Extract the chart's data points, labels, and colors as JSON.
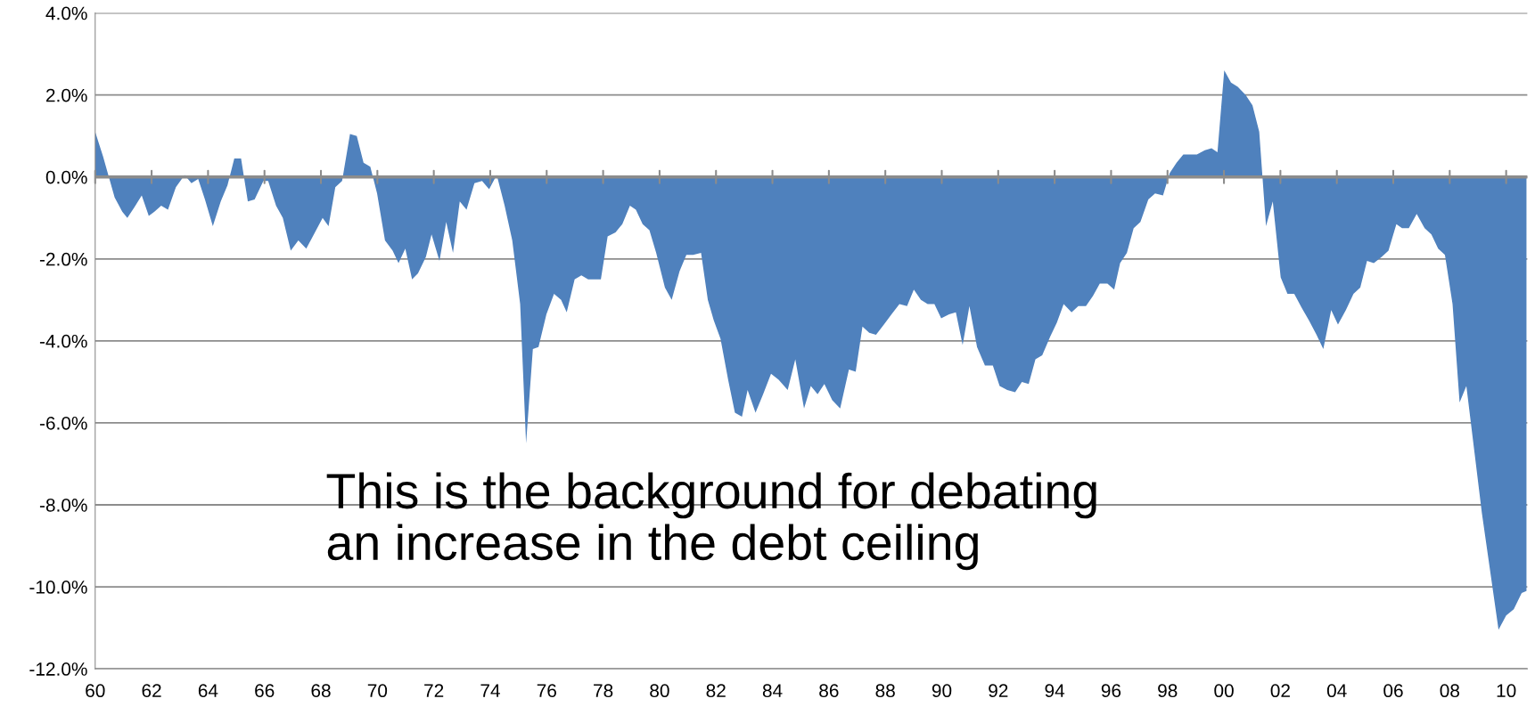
{
  "chart_data": {
    "type": "area",
    "x": [
      1960.0,
      1960.28,
      1960.69,
      1960.96,
      1961.14,
      1961.38,
      1961.65,
      1961.9,
      1962.1,
      1962.34,
      1962.58,
      1962.86,
      1963.17,
      1963.41,
      1963.65,
      1963.89,
      1964.17,
      1964.45,
      1964.69,
      1964.93,
      1965.17,
      1965.41,
      1965.65,
      1965.96,
      1966.13,
      1966.41,
      1966.65,
      1966.93,
      1967.2,
      1967.48,
      1967.75,
      1968.06,
      1968.27,
      1968.51,
      1968.75,
      1969.03,
      1969.27,
      1969.51,
      1969.75,
      1969.99,
      1970.27,
      1970.54,
      1970.75,
      1970.99,
      1971.23,
      1971.44,
      1971.72,
      1971.92,
      1972.2,
      1972.44,
      1972.68,
      1972.92,
      1973.16,
      1973.44,
      1973.71,
      1973.96,
      1974.23,
      1974.51,
      1974.78,
      1975.06,
      1975.27,
      1975.51,
      1975.71,
      1975.99,
      1976.26,
      1976.51,
      1976.71,
      1976.99,
      1977.23,
      1977.47,
      1977.71,
      1977.92,
      1978.16,
      1978.44,
      1978.68,
      1978.95,
      1979.16,
      1979.4,
      1979.64,
      1979.88,
      1980.19,
      1980.43,
      1980.71,
      1980.95,
      1981.19,
      1981.47,
      1981.71,
      1981.92,
      1982.16,
      1982.43,
      1982.67,
      1982.92,
      1983.12,
      1983.4,
      1983.67,
      1983.95,
      1984.22,
      1984.54,
      1984.81,
      1985.12,
      1985.36,
      1985.6,
      1985.84,
      1986.12,
      1986.4,
      1986.71,
      1986.95,
      1987.19,
      1987.43,
      1987.67,
      1987.95,
      1988.22,
      1988.5,
      1988.77,
      1989.01,
      1989.26,
      1989.5,
      1989.74,
      1989.98,
      1990.26,
      1990.5,
      1990.74,
      1990.98,
      1991.25,
      1991.53,
      1991.81,
      1992.05,
      1992.32,
      1992.6,
      1992.84,
      1993.08,
      1993.32,
      1993.56,
      1993.84,
      1994.08,
      1994.32,
      1994.6,
      1994.84,
      1995.11,
      1995.36,
      1995.6,
      1995.87,
      1996.11,
      1996.32,
      1996.56,
      1996.8,
      1997.04,
      1997.32,
      1997.56,
      1997.84,
      1998.08,
      1998.32,
      1998.56,
      1998.8,
      1999.04,
      1999.32,
      1999.56,
      1999.77,
      2000.01,
      2000.25,
      2000.49,
      2000.77,
      2001.01,
      2001.25,
      2001.49,
      2001.73,
      2002.01,
      2002.25,
      2002.49,
      2002.76,
      2003.01,
      2003.28,
      2003.52,
      2003.8,
      2004.04,
      2004.32,
      2004.59,
      2004.83,
      2005.07,
      2005.31,
      2005.59,
      2005.83,
      2006.11,
      2006.31,
      2006.55,
      2006.83,
      2007.11,
      2007.35,
      2007.59,
      2007.83,
      2008.1,
      2008.35,
      2008.59,
      2009.14,
      2009.73,
      2010.0,
      2010.27,
      2010.55,
      2010.72
    ],
    "series": [
      {
        "color": "#4f81bd",
        "values": [
          1.1,
          0.5,
          -0.5,
          -0.85,
          -1.0,
          -0.75,
          -0.45,
          -0.95,
          -0.85,
          -0.7,
          -0.8,
          -0.25,
          0.05,
          -0.15,
          -0.05,
          -0.55,
          -1.2,
          -0.6,
          -0.2,
          0.45,
          0.45,
          -0.6,
          -0.55,
          -0.1,
          -0.1,
          -0.7,
          -1.0,
          -1.8,
          -1.55,
          -1.75,
          -1.4,
          -1.0,
          -1.2,
          -0.25,
          -0.1,
          1.05,
          1.0,
          0.35,
          0.25,
          -0.4,
          -1.55,
          -1.8,
          -2.1,
          -1.75,
          -2.5,
          -2.35,
          -1.95,
          -1.4,
          -2.05,
          -1.1,
          -1.85,
          -0.6,
          -0.8,
          -0.15,
          -0.1,
          -0.3,
          0.05,
          -0.7,
          -1.55,
          -3.1,
          -6.5,
          -4.2,
          -4.15,
          -3.35,
          -2.85,
          -3.0,
          -3.3,
          -2.5,
          -2.4,
          -2.5,
          -2.5,
          -2.5,
          -1.45,
          -1.35,
          -1.15,
          -0.7,
          -0.8,
          -1.15,
          -1.3,
          -1.85,
          -2.7,
          -3.0,
          -2.3,
          -1.9,
          -1.9,
          -1.85,
          -3.0,
          -3.5,
          -3.95,
          -4.95,
          -5.75,
          -5.85,
          -5.2,
          -5.75,
          -5.3,
          -4.8,
          -4.95,
          -5.2,
          -4.45,
          -5.65,
          -5.1,
          -5.3,
          -5.05,
          -5.45,
          -5.65,
          -4.7,
          -4.75,
          -3.65,
          -3.8,
          -3.85,
          -3.6,
          -3.35,
          -3.1,
          -3.15,
          -2.75,
          -3.0,
          -3.1,
          -3.1,
          -3.45,
          -3.35,
          -3.3,
          -4.1,
          -3.15,
          -4.15,
          -4.6,
          -4.6,
          -5.1,
          -5.2,
          -5.25,
          -5.0,
          -5.05,
          -4.45,
          -4.35,
          -3.9,
          -3.55,
          -3.1,
          -3.3,
          -3.15,
          -3.15,
          -2.9,
          -2.6,
          -2.6,
          -2.75,
          -2.1,
          -1.85,
          -1.25,
          -1.1,
          -0.55,
          -0.4,
          -0.45,
          0.1,
          0.35,
          0.55,
          0.55,
          0.55,
          0.65,
          0.7,
          0.6,
          2.6,
          2.3,
          2.2,
          2.0,
          1.75,
          1.1,
          -1.2,
          -0.6,
          -2.45,
          -2.85,
          -2.85,
          -3.2,
          -3.5,
          -3.85,
          -4.2,
          -3.25,
          -3.6,
          -3.25,
          -2.85,
          -2.7,
          -2.05,
          -2.1,
          -1.95,
          -1.8,
          -1.15,
          -1.25,
          -1.25,
          -0.9,
          -1.25,
          -1.4,
          -1.75,
          -1.9,
          -3.1,
          -5.5,
          -5.1,
          -8.2,
          -11.05,
          -10.7,
          -10.55,
          -10.15,
          -10.1
        ]
      }
    ],
    "xlim": [
      1960,
      2010.75
    ],
    "xticks": [
      {
        "value": 1960,
        "label": "60"
      },
      {
        "value": 1962,
        "label": "62"
      },
      {
        "value": 1964,
        "label": "64"
      },
      {
        "value": 1966,
        "label": "66"
      },
      {
        "value": 1968,
        "label": "68"
      },
      {
        "value": 1970,
        "label": "70"
      },
      {
        "value": 1972,
        "label": "72"
      },
      {
        "value": 1974,
        "label": "74"
      },
      {
        "value": 1976,
        "label": "76"
      },
      {
        "value": 1978,
        "label": "78"
      },
      {
        "value": 1980,
        "label": "80"
      },
      {
        "value": 1982,
        "label": "82"
      },
      {
        "value": 1984,
        "label": "84"
      },
      {
        "value": 1986,
        "label": "86"
      },
      {
        "value": 1988,
        "label": "88"
      },
      {
        "value": 1990,
        "label": "90"
      },
      {
        "value": 1992,
        "label": "92"
      },
      {
        "value": 1994,
        "label": "94"
      },
      {
        "value": 1996,
        "label": "96"
      },
      {
        "value": 1998,
        "label": "98"
      },
      {
        "value": 2000,
        "label": "00"
      },
      {
        "value": 2002,
        "label": "02"
      },
      {
        "value": 2004,
        "label": "04"
      },
      {
        "value": 2006,
        "label": "06"
      },
      {
        "value": 2008,
        "label": "08"
      },
      {
        "value": 2010,
        "label": "10"
      }
    ],
    "ylim": [
      -12,
      4
    ],
    "yticks": [
      {
        "value": -12,
        "label": "-12.0%"
      },
      {
        "value": -10,
        "label": "-10.0%"
      },
      {
        "value": -8,
        "label": "-8.0%"
      },
      {
        "value": -6,
        "label": "-6.0%"
      },
      {
        "value": -4,
        "label": "-4.0%"
      },
      {
        "value": -2,
        "label": "-2.0%"
      },
      {
        "value": 0,
        "label": "0.0%"
      },
      {
        "value": 2,
        "label": "2.0%"
      },
      {
        "value": 4,
        "label": "4.0%"
      }
    ],
    "grid": "y",
    "annotations": [
      "This is the background for debating\nan increase in the debt ceiling"
    ]
  }
}
